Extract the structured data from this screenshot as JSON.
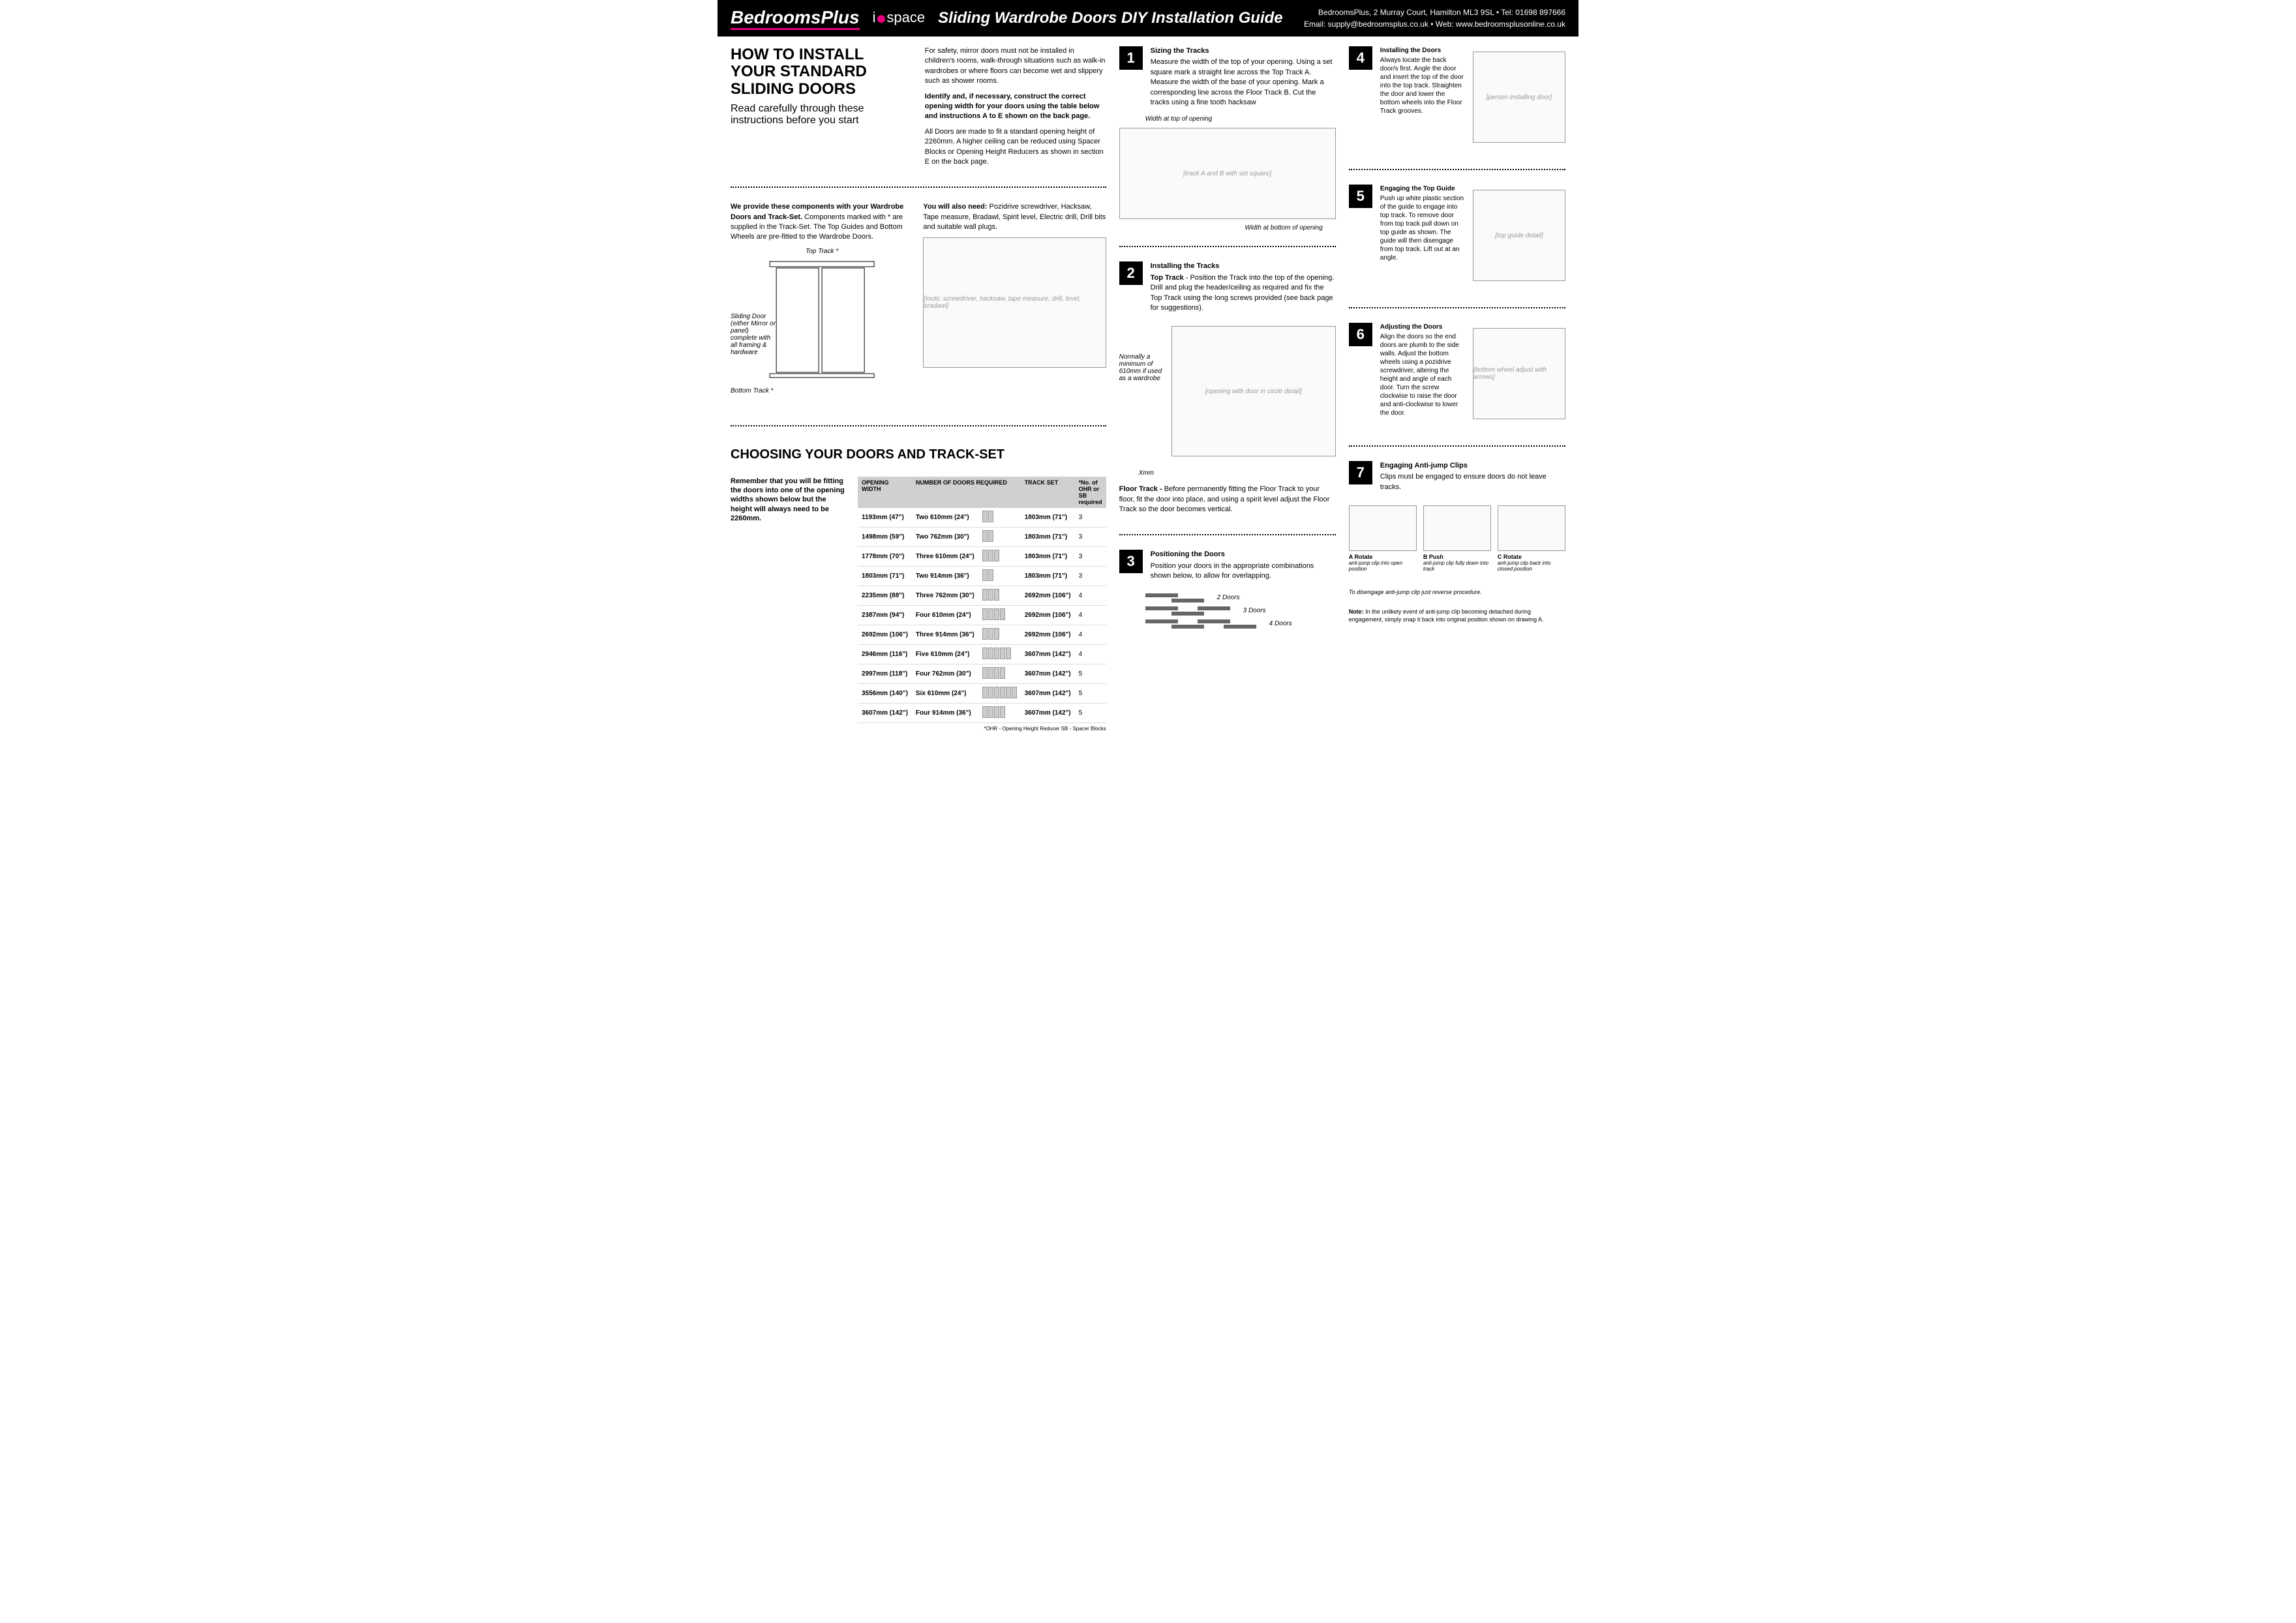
{
  "header": {
    "logo1": "BedroomsPlus",
    "logo2_1": "i",
    "logo2_2": "space",
    "title": "Sliding Wardrobe Doors DIY Installation Guide",
    "contact_line1": "BedroomsPlus, 2 Murray Court, Hamilton ML3 9SL  •  Tel: 01698 897666",
    "contact_line2": "Email: supply@bedroomsplus.co.uk  •  Web: www.bedroomsplusonline.co.uk"
  },
  "main_title": "HOW TO INSTALL YOUR STANDARD SLIDING DOORS",
  "subtitle": "Read carefully through these instructions before you start",
  "safety_para": "For safety, mirror doors must not be installed in children's rooms, walk-through situations such as walk-in wardrobes or where floors can become wet and slippery such as shower rooms.",
  "identify_bold": "Identify and, if necessary, construct the correct opening width for your doors using the table below and instructions A to E shown on the back page.",
  "all_doors_para": "All Doors are made to fit a standard opening height of 2260mm. A higher ceiling can be reduced using Spacer Blocks or Opening Height Reducers as shown in section E on the back page.",
  "components_bold": "We provide these components with your Wardrobe Doors and Track-Set.",
  "components_text": " Components marked with * are supplied in the Track-Set. The Top Guides and Bottom Wheels are pre-fitted to the Wardrobe Doors.",
  "tools_bold": "You will also need:",
  "tools_text": " Pozidrive screwdriver, Hacksaw, Tape measure, Bradawl, Spirit level, Electric drill, Drill bits and suitable wall plugs.",
  "top_track_label": "Top Track *",
  "bottom_track_label": "Bottom Track *",
  "door_label": "Sliding Door (either Mirror or panel) complete with all framing & hardware",
  "choosing_title": "CHOOSING YOUR DOORS AND TRACK-SET",
  "choosing_intro": "Remember that you will be fitting the doors into one of the opening widths shown below but the height will always need to be 2260mm.",
  "table_headers": {
    "h1": "OPENING WIDTH",
    "h2": "NUMBER OF DOORS REQUIRED",
    "h3": "TRACK SET",
    "h4": "*No. of OHR or SB required"
  },
  "table_rows": [
    {
      "w": "1193mm (47\")",
      "d": "Two 610mm (24\")",
      "n": 2,
      "t": "1803mm (71\")",
      "o": "3"
    },
    {
      "w": "1498mm (59\")",
      "d": "Two 762mm (30\")",
      "n": 2,
      "t": "1803mm (71\")",
      "o": "3"
    },
    {
      "w": "1778mm (70\")",
      "d": "Three 610mm (24\")",
      "n": 3,
      "t": "1803mm (71\")",
      "o": "3"
    },
    {
      "w": "1803mm (71\")",
      "d": "Two 914mm (36\")",
      "n": 2,
      "t": "1803mm (71\")",
      "o": "3"
    },
    {
      "w": "2235mm (88\")",
      "d": "Three 762mm (30\")",
      "n": 3,
      "t": "2692mm (106\")",
      "o": "4"
    },
    {
      "w": "2387mm (94\")",
      "d": "Four 610mm (24\")",
      "n": 4,
      "t": "2692mm (106\")",
      "o": "4"
    },
    {
      "w": "2692mm (106\")",
      "d": "Three 914mm (36\")",
      "n": 3,
      "t": "2692mm (106\")",
      "o": "4"
    },
    {
      "w": "2946mm (116\")",
      "d": "Five 610mm (24\")",
      "n": 5,
      "t": "3607mm (142\")",
      "o": "4"
    },
    {
      "w": "2997mm (118\")",
      "d": "Four 762mm (30\")",
      "n": 4,
      "t": "3607mm (142\")",
      "o": "5"
    },
    {
      "w": "3556mm (140\")",
      "d": "Six 610mm (24\")",
      "n": 6,
      "t": "3607mm (142\")",
      "o": "5"
    },
    {
      "w": "3607mm (142\")",
      "d": "Four 914mm (36\")",
      "n": 4,
      "t": "3607mm (142\")",
      "o": "5"
    }
  ],
  "footnote": "*OHR - Opening Height Reducer    SB - Spacer Blocks",
  "step1_title": "Sizing the Tracks",
  "step1_text": "Measure the width of the top of your opening. Using a set square mark a straight line across the Top Track A. Measure the width of the base of your opening. Mark a corresponding line across the Floor Track B. Cut the tracks using a fine tooth hacksaw",
  "step1_label1": "Width at top of opening",
  "step1_label2": "Width at bottom of opening",
  "step2_title": "Installing the Tracks",
  "step2_bold": "Top Track",
  "step2_text": " - Position the Track into the top of the opening. Drill and plug the header/ceiling as required and fix the Top Track using the long screws provided (see back page for suggestions).",
  "step2_label": "Normally a minimum of 610mm if used as a wardrobe",
  "step2_xmm": "Xmm",
  "floor_track_bold": "Floor Track - ",
  "floor_track_text": "Before permanently fitting the Floor Track to your floor, fit the door into place, and using a spirit level adjust the Floor Track so the door becomes vertical.",
  "step3_title": "Positioning the Doors",
  "step3_text": "Position your doors in the appropriate combinations shown below, to allow for overlapping.",
  "overlap_2": "2 Doors",
  "overlap_3": "3 Doors",
  "overlap_4": "4 Doors",
  "step4_title": "Installing the Doors",
  "step4_text": "Always locate the back door/s first. Angle the door and insert the top of the door into the top track. Straighten the door and lower the bottom wheels into the Floor Track grooves.",
  "step5_title": "Engaging the Top Guide",
  "step5_text": "Push up white plastic section of the guide to engage into top track. To remove door from top track pull down on top guide as shown. The guide will then disengage from top track. Lift out at an angle.",
  "step6_title": "Adjusting the Doors",
  "step6_text": "Align the doors so the end doors are plumb to the side walls. Adjust the bottom wheels using a pozidrive screwdriver, altering the height and angle of each door. Turn the screw clockwise to raise the door and anti-clockwise to lower the door.",
  "step7_title": "Engaging Anti-jump Clips",
  "step7_text": "Clips must be engaged to ensure doors do not leave tracks.",
  "clip_a_label": "A Rotate",
  "clip_a_desc": "anti-jump clip into open position",
  "clip_b_label": "B Push",
  "clip_b_desc": "anti-jump clip fully down into track",
  "clip_c_label": "C Rotate",
  "clip_c_desc": "anti-jump clip back into closed position",
  "disengage": "To disengage anti-jump clip just reverse procedure.",
  "note_bold": "Note:",
  "note_text": " In the unlikely event of anti-jump clip becoming detached during engagement, simply snap it back into original position shown on drawing A."
}
